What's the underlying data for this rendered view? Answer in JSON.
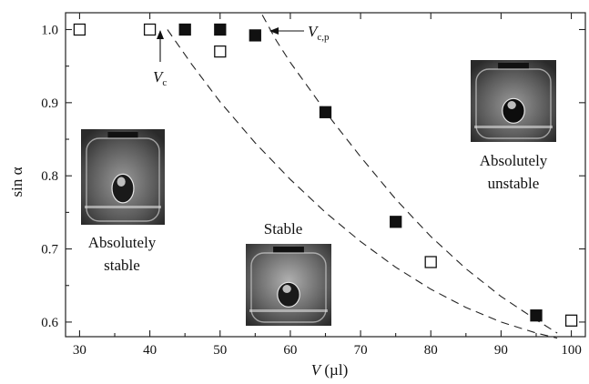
{
  "chart_data": {
    "type": "scatter",
    "xlabel": "V (µl)",
    "ylabel": "sin α",
    "xlim": [
      28,
      102
    ],
    "ylim": [
      0.58,
      1.023
    ],
    "x_ticks": [
      "30",
      "40",
      "50",
      "60",
      "70",
      "80",
      "90",
      "100"
    ],
    "y_ticks": [
      "0.6",
      "0.7",
      "0.8",
      "0.9",
      "1.0"
    ],
    "grid": false,
    "series": [
      {
        "marker": "open-square",
        "x": [
          30,
          40,
          50,
          80,
          100
        ],
        "y": [
          1.0,
          1.0,
          0.97,
          0.682,
          0.602
        ]
      },
      {
        "marker": "filled-square",
        "x": [
          45,
          50,
          55,
          65,
          75,
          95
        ],
        "y": [
          1.0,
          1.0,
          0.992,
          0.887,
          0.737,
          0.609
        ]
      }
    ],
    "curves": [
      {
        "style": "dashed",
        "x": [
          42.5,
          46,
          50,
          55,
          60,
          65,
          70,
          75,
          80,
          85,
          90,
          95,
          98
        ],
        "y": [
          1.0,
          0.952,
          0.901,
          0.845,
          0.795,
          0.75,
          0.71,
          0.675,
          0.645,
          0.62,
          0.6,
          0.585,
          0.578
        ]
      },
      {
        "style": "dashed",
        "x": [
          56,
          58,
          60,
          63,
          66,
          70,
          75,
          80,
          85,
          90,
          95,
          98
        ],
        "y": [
          1.02,
          0.985,
          0.955,
          0.915,
          0.875,
          0.826,
          0.768,
          0.717,
          0.673,
          0.635,
          0.603,
          0.585
        ]
      }
    ],
    "annotations": {
      "vc_main": "V",
      "vc_sub": "c",
      "vcp_main": "V",
      "vcp_sub": "c,p",
      "stable": "Stable",
      "absolutely_stable_line1": "Absolutely",
      "absolutely_stable_line2": "stable",
      "absolutely_unstable_line1": "Absolutely",
      "absolutely_unstable_line2": "unstable"
    },
    "insets": [
      "photo-absolutely-stable",
      "photo-stable",
      "photo-absolutely-unstable"
    ]
  }
}
